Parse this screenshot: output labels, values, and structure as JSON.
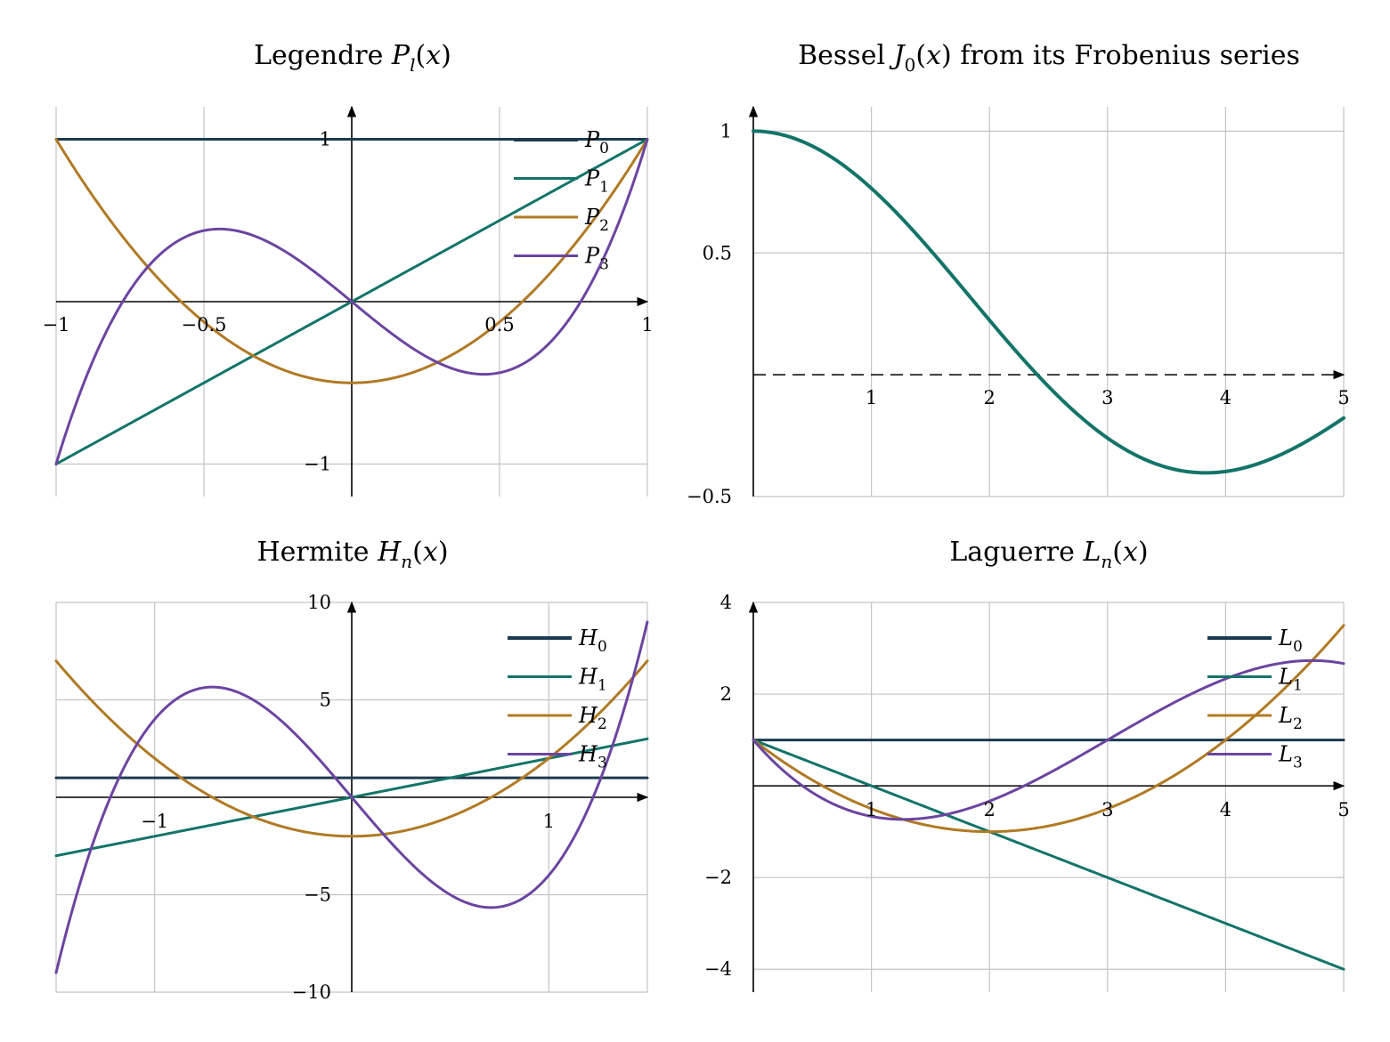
{
  "colors": {
    "navy": "#1c3a4f",
    "teal": "#137468",
    "gold": "#b07a24",
    "purple": "#6b45a0",
    "grid": "#c4c4c4",
    "axis": "#000000"
  },
  "chart_data": [
    {
      "id": "legendre",
      "type": "line",
      "title": "Legendre P_l(x)",
      "title_parts": [
        "Legendre ",
        "P",
        "l",
        "(",
        "x",
        ")"
      ],
      "xlim": [
        -1,
        1
      ],
      "ylim": [
        -1.2,
        1.2
      ],
      "xticks": [
        -1,
        -0.5,
        0.5,
        1
      ],
      "xtick_labels": [
        "−1",
        "−0.5",
        "0.5",
        "1"
      ],
      "yticks": [
        -1,
        1
      ],
      "ytick_labels": [
        "−1",
        "1"
      ],
      "grid": true,
      "legend": "top-right",
      "series": [
        {
          "name": "P0",
          "label_main": "P",
          "label_sub": "0",
          "color": "navy",
          "formula": "P0",
          "x": [
            -1,
            0,
            1
          ],
          "y": [
            1,
            1,
            1
          ]
        },
        {
          "name": "P1",
          "label_main": "P",
          "label_sub": "1",
          "color": "teal",
          "formula": "P1",
          "x": [
            -1,
            0,
            1
          ],
          "y": [
            -1,
            0,
            1
          ]
        },
        {
          "name": "P2",
          "label_main": "P",
          "label_sub": "2",
          "color": "gold",
          "formula": "P2",
          "x": [
            -1,
            -0.5,
            0,
            0.5,
            1
          ],
          "y": [
            1,
            -0.125,
            -0.5,
            -0.125,
            1
          ]
        },
        {
          "name": "P3",
          "label_main": "P",
          "label_sub": "3",
          "color": "purple",
          "formula": "P3",
          "x": [
            -1,
            -0.45,
            0,
            0.45,
            1
          ],
          "y": [
            -1,
            0.44,
            0,
            -0.44,
            1
          ]
        }
      ]
    },
    {
      "id": "bessel",
      "type": "line",
      "title": "Bessel J_0(x) from its Frobenius series",
      "title_parts": [
        "Bessel ",
        "J",
        "0",
        "(",
        "x",
        ") from its Frobenius series"
      ],
      "xlim": [
        0,
        5
      ],
      "ylim": [
        -0.5,
        1.1
      ],
      "xticks": [
        1,
        2,
        3,
        4,
        5
      ],
      "xtick_labels": [
        "1",
        "2",
        "3",
        "4",
        "5"
      ],
      "yticks": [
        -0.5,
        0.5,
        1
      ],
      "ytick_labels": [
        "−0.5",
        "0.5",
        "1"
      ],
      "grid": true,
      "zero_line": "dashed",
      "series": [
        {
          "name": "",
          "color": "teal",
          "formula": "J0",
          "x": [
            0,
            1,
            2,
            2.405,
            3,
            3.83,
            5
          ],
          "y": [
            1,
            0.765,
            0.224,
            0,
            -0.26,
            -0.403,
            -0.178
          ]
        }
      ]
    },
    {
      "id": "hermite",
      "type": "line",
      "title": "Hermite H_n(x)",
      "title_parts": [
        "Hermite ",
        "H",
        "n",
        "(",
        "x",
        ")"
      ],
      "xlim": [
        -1.5,
        1.5
      ],
      "ylim": [
        -10,
        10
      ],
      "xticks": [
        -1,
        1
      ],
      "xtick_labels": [
        "−1",
        "1"
      ],
      "yticks": [
        -10,
        -5,
        5,
        10
      ],
      "ytick_labels": [
        "−10",
        "−5",
        "5",
        "10"
      ],
      "grid": true,
      "legend": "top-right",
      "series": [
        {
          "name": "H0",
          "label_main": "H",
          "label_sub": "0",
          "color": "navy",
          "formula": "H0",
          "x": [
            -1.5,
            1.5
          ],
          "y": [
            1,
            1
          ]
        },
        {
          "name": "H1",
          "label_main": "H",
          "label_sub": "1",
          "color": "teal",
          "formula": "H1",
          "x": [
            -1.5,
            0,
            1.5
          ],
          "y": [
            -3,
            0,
            3
          ]
        },
        {
          "name": "H2",
          "label_main": "H",
          "label_sub": "2",
          "color": "gold",
          "formula": "H2",
          "x": [
            -1.5,
            0,
            1.5
          ],
          "y": [
            7,
            -2,
            7
          ]
        },
        {
          "name": "H3",
          "label_main": "H",
          "label_sub": "3",
          "color": "purple",
          "formula": "H3",
          "x": [
            -1.5,
            -0.71,
            0,
            0.71,
            1.5
          ],
          "y": [
            -9,
            5.66,
            0,
            -5.66,
            9
          ]
        }
      ]
    },
    {
      "id": "laguerre",
      "type": "line",
      "title": "Laguerre L_n(x)",
      "title_parts": [
        "Laguerre ",
        "L",
        "n",
        "(",
        "x",
        ")"
      ],
      "xlim": [
        0,
        5
      ],
      "ylim": [
        -4.5,
        4
      ],
      "xticks": [
        1,
        2,
        3,
        4,
        5
      ],
      "xtick_labels": [
        "1",
        "2",
        "3",
        "4",
        "5"
      ],
      "yticks": [
        -4,
        -2,
        2,
        4
      ],
      "ytick_labels": [
        "−4",
        "−2",
        "2",
        "4"
      ],
      "grid": true,
      "legend": "top-right",
      "series": [
        {
          "name": "L0",
          "label_main": "L",
          "label_sub": "0",
          "color": "navy",
          "formula": "L0",
          "x": [
            0,
            5
          ],
          "y": [
            1,
            1
          ]
        },
        {
          "name": "L1",
          "label_main": "L",
          "label_sub": "1",
          "color": "teal",
          "formula": "L1",
          "x": [
            0,
            5
          ],
          "y": [
            1,
            -4
          ]
        },
        {
          "name": "L2",
          "label_main": "L",
          "label_sub": "2",
          "color": "gold",
          "formula": "L2",
          "x": [
            0,
            2,
            5
          ],
          "y": [
            1,
            -1,
            3.5
          ]
        },
        {
          "name": "L3",
          "label_main": "L",
          "label_sub": "3",
          "color": "purple",
          "formula": "L3",
          "x": [
            0,
            1.27,
            3,
            4.73,
            5
          ],
          "y": [
            1,
            -0.73,
            1,
            2.73,
            2.67
          ]
        }
      ]
    }
  ]
}
